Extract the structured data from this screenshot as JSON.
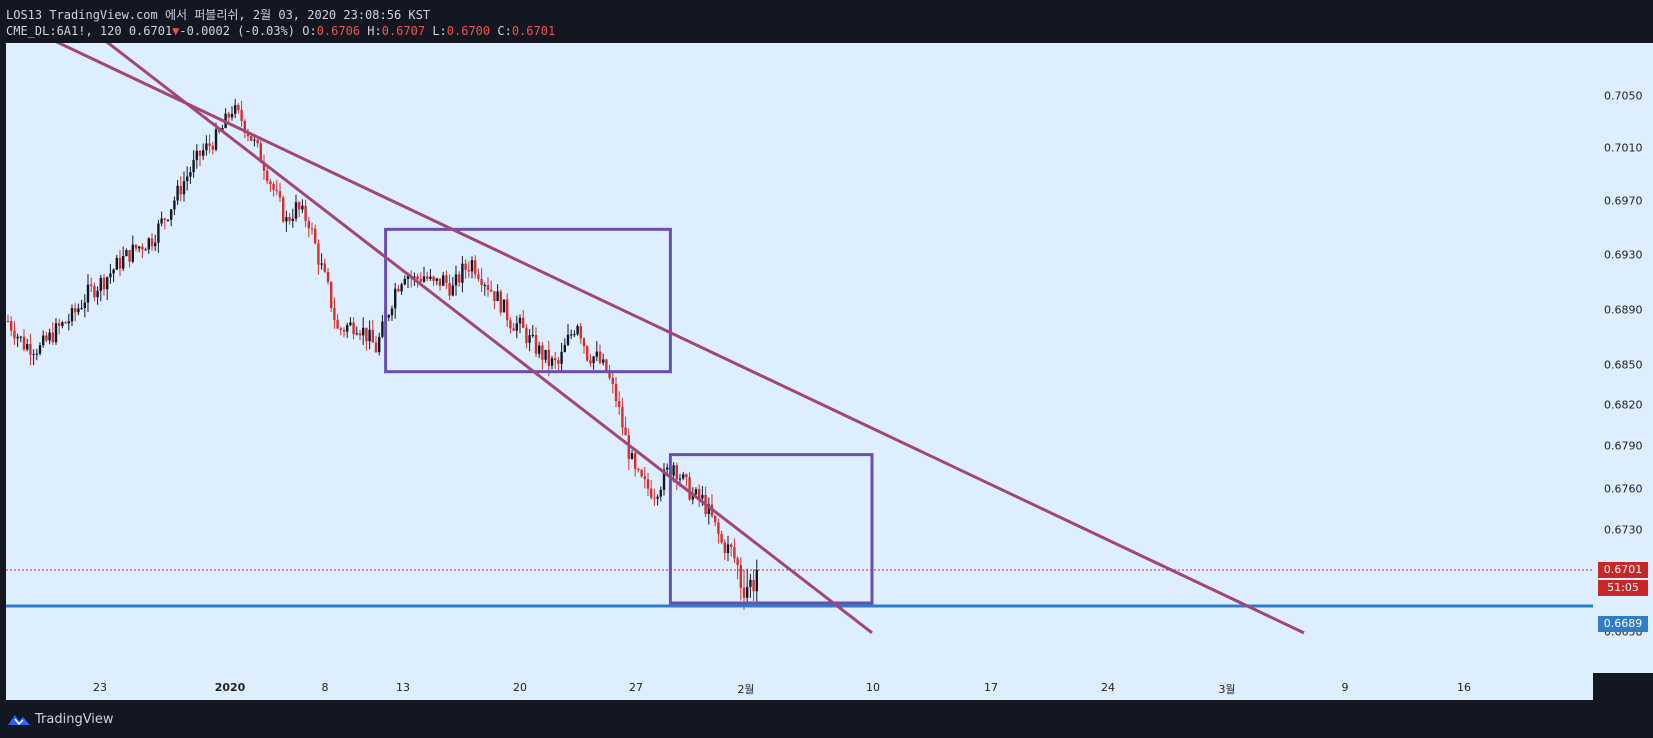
{
  "header": {
    "line1": "LOS13 TradingView.com 에서 퍼블리쉬, 2월 03, 2020 23:08:56 KST",
    "symbol": "CME_DL:6A1!, 120 0.6701",
    "change_arrow": "▼",
    "change": "-0.0002 (-0.03%)",
    "o_label": "O:",
    "o_value": "0.6706",
    "h_label": "H:",
    "h_value": "0.6707",
    "l_label": "L:",
    "l_value": "0.6700",
    "c_label": "C:",
    "c_value": "0.6701"
  },
  "footer": {
    "brand": "TradingView",
    "logo": "tradingview-logo-icon"
  },
  "colors": {
    "background": "#ddeeff",
    "up_candle": "#131722",
    "down_candle": "#d32f2f",
    "trendline": "#a0467a",
    "box": "#6a4fb0",
    "support": "#2f7dc4",
    "current_price": "#c62828"
  },
  "chart_data": {
    "type": "candlestick",
    "title": "",
    "y_ticks": [
      "0.7050",
      "0.7010",
      "0.6970",
      "0.6930",
      "0.6890",
      "0.6850",
      "0.6820",
      "0.6790",
      "0.6760",
      "0.6730",
      "0.6658"
    ],
    "x_ticks": [
      "23",
      "2020",
      "8",
      "13",
      "20",
      "27",
      "2월",
      "10",
      "17",
      "24",
      "3월",
      "9",
      "16"
    ],
    "price_path": [
      [
        0,
        0.6882
      ],
      [
        5,
        0.6865
      ],
      [
        10,
        0.6862
      ],
      [
        15,
        0.6875
      ],
      [
        20,
        0.6885
      ],
      [
        25,
        0.6902
      ],
      [
        30,
        0.6912
      ],
      [
        35,
        0.6925
      ],
      [
        40,
        0.6935
      ],
      [
        45,
        0.6942
      ],
      [
        50,
        0.6962
      ],
      [
        55,
        0.6985
      ],
      [
        60,
        0.7005
      ],
      [
        66,
        0.702
      ],
      [
        70,
        0.704
      ],
      [
        73,
        0.7032
      ],
      [
        76,
        0.7018
      ],
      [
        80,
        0.6998
      ],
      [
        84,
        0.6972
      ],
      [
        87,
        0.6955
      ],
      [
        90,
        0.6965
      ],
      [
        94,
        0.6955
      ],
      [
        97,
        0.6928
      ],
      [
        100,
        0.6905
      ],
      [
        103,
        0.6875
      ],
      [
        106,
        0.6878
      ],
      [
        109,
        0.688
      ],
      [
        112,
        0.6872
      ],
      [
        115,
        0.6862
      ],
      [
        118,
        0.6882
      ],
      [
        121,
        0.6905
      ],
      [
        124,
        0.6918
      ],
      [
        127,
        0.6912
      ],
      [
        130,
        0.6915
      ],
      [
        133,
        0.6908
      ],
      [
        136,
        0.6912
      ],
      [
        139,
        0.6905
      ],
      [
        142,
        0.6918
      ],
      [
        145,
        0.6925
      ],
      [
        148,
        0.6915
      ],
      [
        151,
        0.6905
      ],
      [
        154,
        0.6895
      ],
      [
        157,
        0.6882
      ],
      [
        160,
        0.6878
      ],
      [
        163,
        0.6868
      ],
      [
        166,
        0.686
      ],
      [
        169,
        0.6852
      ],
      [
        172,
        0.685
      ],
      [
        175,
        0.6868
      ],
      [
        178,
        0.6882
      ],
      [
        181,
        0.6858
      ],
      [
        184,
        0.6855
      ],
      [
        187,
        0.6845
      ],
      [
        190,
        0.6825
      ],
      [
        193,
        0.6795
      ],
      [
        196,
        0.677
      ],
      [
        199,
        0.6762
      ],
      [
        202,
        0.6758
      ],
      [
        205,
        0.6768
      ],
      [
        208,
        0.6778
      ],
      [
        211,
        0.6765
      ],
      [
        214,
        0.6755
      ],
      [
        217,
        0.6752
      ],
      [
        220,
        0.6738
      ],
      [
        223,
        0.672
      ],
      [
        226,
        0.6715
      ],
      [
        229,
        0.6698
      ],
      [
        232,
        0.6696
      ],
      [
        234,
        0.6701
      ]
    ],
    "trendlines": [
      {
        "from": [
          -40,
          0.7156
        ],
        "to": [
          405,
          0.6657
        ]
      },
      {
        "from": [
          -3,
          0.7156
        ],
        "to": [
          270,
          0.6657
        ]
      }
    ],
    "boxes": [
      {
        "from": [
          118,
          0.6949
        ],
        "to": [
          207,
          0.6845
        ]
      },
      {
        "from": [
          207,
          0.6784
        ],
        "to": [
          270,
          0.669
        ]
      }
    ],
    "support_level": "0.6689",
    "current_price": "0.6701",
    "countdown": "51:05",
    "ylim": [
      0.71,
      0.662
    ],
    "xlim": [
      0,
      495
    ]
  }
}
